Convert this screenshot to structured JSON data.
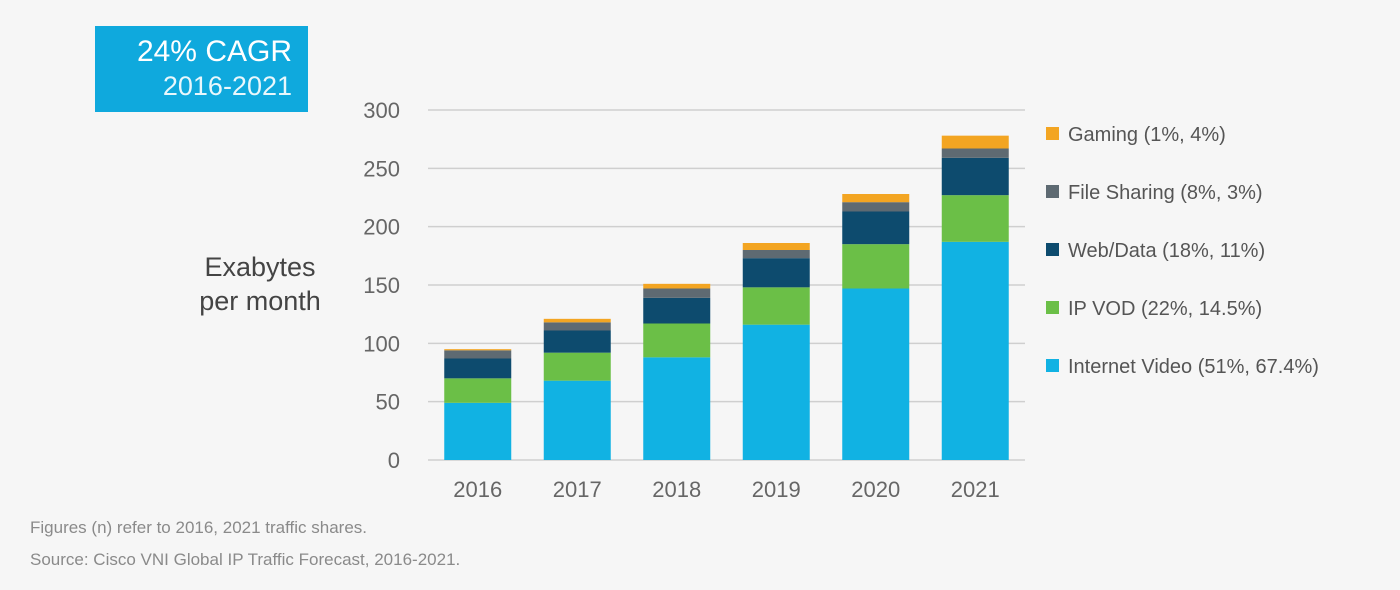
{
  "colors": {
    "background": "#f6f6f6",
    "cagr_box": "#0fa9dd",
    "grid": "#cfcfcf"
  },
  "badge": {
    "title": "24% CAGR",
    "period": "2016-2021"
  },
  "footnote": {
    "line1": "Figures (n) refer to 2016, 2021 traffic shares.",
    "line2": "Source: Cisco VNI Global IP Traffic Forecast, 2016-2021."
  },
  "chart_data": {
    "type": "bar",
    "stacked": true,
    "title": "",
    "xlabel": "",
    "ylabel": "Exabytes per month",
    "ylabel_lines": [
      "Exabytes",
      "per month"
    ],
    "ylim": [
      0,
      300
    ],
    "yticks": [
      0,
      50,
      100,
      150,
      200,
      250,
      300
    ],
    "grid": true,
    "legend_position": "right",
    "categories": [
      "2016",
      "2017",
      "2018",
      "2019",
      "2020",
      "2021"
    ],
    "series": [
      {
        "name": "Internet Video (51%, 67.4%)",
        "color": "#11b2e3",
        "values": [
          49,
          68,
          88,
          116,
          147,
          187
        ]
      },
      {
        "name": "IP VOD (22%, 14.5%)",
        "color": "#6bbf47",
        "values": [
          21,
          24,
          29,
          32,
          38,
          40
        ]
      },
      {
        "name": "Web/Data (18%, 11%)",
        "color": "#0d4b6e",
        "values": [
          17,
          19,
          22,
          25,
          28,
          32
        ]
      },
      {
        "name": "File Sharing (8%, 3%)",
        "color": "#5e6a72",
        "values": [
          7,
          7,
          8,
          7,
          8,
          8
        ]
      },
      {
        "name": "Gaming (1%, 4%)",
        "color": "#f3a522",
        "values": [
          1,
          3,
          4,
          6,
          7,
          11
        ]
      }
    ]
  }
}
